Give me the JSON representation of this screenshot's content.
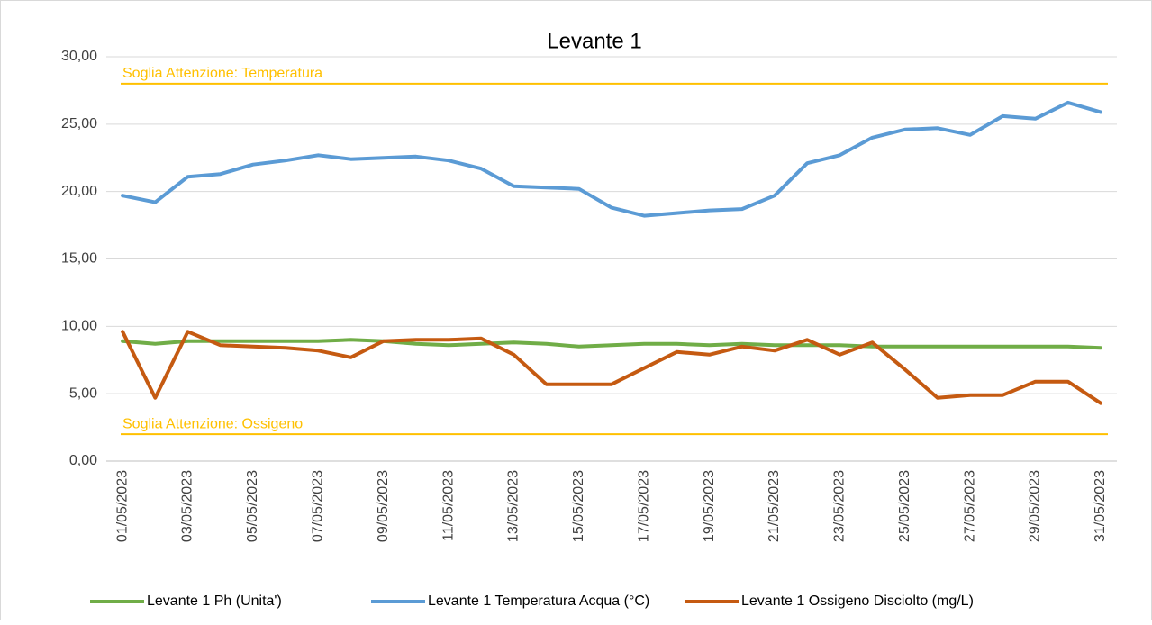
{
  "chart_data": {
    "type": "line",
    "title": "Levante 1",
    "categories": [
      "01/05/2023",
      null,
      "03/05/2023",
      null,
      "05/05/2023",
      null,
      "07/05/2023",
      null,
      "09/05/2023",
      null,
      "11/05/2023",
      null,
      "13/05/2023",
      null,
      "15/05/2023",
      null,
      "17/05/2023",
      null,
      "19/05/2023",
      null,
      "21/05/2023",
      null,
      "23/05/2023",
      null,
      "25/05/2023",
      null,
      "27/05/2023",
      null,
      "29/05/2023",
      null,
      "31/05/2023"
    ],
    "series": [
      {
        "name": "Levante 1 Ph (Unita')",
        "color": "#70ad47",
        "values": [
          8.9,
          8.7,
          8.9,
          8.9,
          8.9,
          8.9,
          8.9,
          9.0,
          8.9,
          8.7,
          8.6,
          8.7,
          8.8,
          8.7,
          8.5,
          8.6,
          8.7,
          8.7,
          8.6,
          8.7,
          8.6,
          8.6,
          8.6,
          8.5,
          8.5,
          8.5,
          8.5,
          8.5,
          8.5,
          8.5,
          8.4
        ]
      },
      {
        "name": "Levante 1 Temperatura Acqua (°C)",
        "color": "#5b9bd5",
        "values": [
          19.7,
          19.2,
          21.1,
          21.3,
          22.0,
          22.3,
          22.7,
          22.4,
          22.5,
          22.6,
          22.3,
          21.7,
          20.4,
          20.3,
          20.2,
          18.8,
          18.2,
          18.4,
          18.6,
          18.7,
          19.7,
          22.1,
          22.7,
          24.0,
          24.6,
          24.7,
          24.2,
          25.6,
          25.4,
          26.6,
          25.9
        ]
      },
      {
        "name": "Levante 1 Ossigeno Disciolto (mg/L)",
        "color": "#c55a11",
        "values": [
          9.6,
          4.7,
          9.6,
          8.6,
          8.5,
          8.4,
          8.2,
          7.7,
          8.9,
          9.0,
          9.0,
          9.1,
          7.9,
          5.7,
          5.7,
          5.7,
          6.9,
          8.1,
          7.9,
          8.5,
          8.2,
          9.0,
          7.9,
          8.8,
          6.8,
          4.7,
          4.9,
          4.9,
          5.9,
          5.9,
          4.3
        ]
      }
    ],
    "thresholds": [
      {
        "label": "Soglia Attenzione: Temperatura",
        "value": 28,
        "color": "#ffc000"
      },
      {
        "label": "Soglia Attenzione: Ossigeno",
        "value": 2,
        "color": "#ffc000"
      }
    ],
    "ylim": [
      0,
      30
    ],
    "yticks": [
      {
        "value": 0,
        "label": "0,00"
      },
      {
        "value": 5,
        "label": "5,00"
      },
      {
        "value": 10,
        "label": "10,00"
      },
      {
        "value": 15,
        "label": "15,00"
      },
      {
        "value": 20,
        "label": "20,00"
      },
      {
        "value": 25,
        "label": "25,00"
      },
      {
        "value": 30,
        "label": "30,00"
      }
    ],
    "grid": true,
    "legend": "bottom"
  }
}
